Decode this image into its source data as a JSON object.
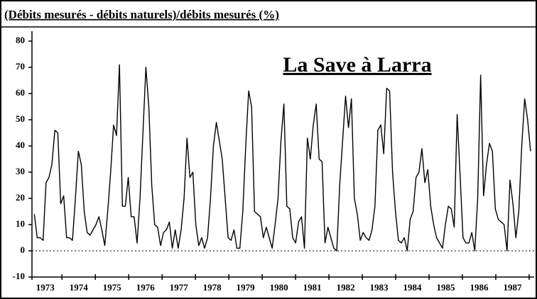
{
  "chart_data": {
    "type": "line",
    "title": "(Débits mesurés - débits naturels)/débits mesurés (%)",
    "annotation": "La Save à Larra",
    "color": "#000000",
    "ylim": [
      -10,
      80
    ],
    "yticks": [
      -10,
      0,
      10,
      20,
      30,
      40,
      50,
      60,
      70,
      80
    ],
    "xlim": [
      1973.1,
      1988.15
    ],
    "xticks": [
      {
        "value": 1973.5,
        "label": "1973"
      },
      {
        "value": 1974.5,
        "label": "1974"
      },
      {
        "value": 1975.5,
        "label": "1975"
      },
      {
        "value": 1976.5,
        "label": "1976"
      },
      {
        "value": 1977.5,
        "label": "1977"
      },
      {
        "value": 1978.5,
        "label": "1978"
      },
      {
        "value": 1979.5,
        "label": "1979"
      },
      {
        "value": 1980.5,
        "label": "1980"
      },
      {
        "value": 1981.5,
        "label": "1981"
      },
      {
        "value": 1982.5,
        "label": "1982"
      },
      {
        "value": 1983.5,
        "label": "1983"
      },
      {
        "value": 1984.5,
        "label": "1984"
      },
      {
        "value": 1985.5,
        "label": "1985"
      },
      {
        "value": 1986.5,
        "label": "1986"
      },
      {
        "value": 1987.5,
        "label": "1987"
      }
    ],
    "xtick_marks": [
      1974,
      1975,
      1976,
      1977,
      1978,
      1979,
      1980,
      1981,
      1982,
      1983,
      1984,
      1985,
      1986,
      1987,
      1988
    ],
    "reference_line": 0,
    "x": [
      1973.17,
      1973.258,
      1973.346,
      1973.434,
      1973.522,
      1973.61,
      1973.698,
      1973.786,
      1973.874,
      1973.962,
      1974.05,
      1974.138,
      1974.226,
      1974.314,
      1974.402,
      1974.49,
      1974.578,
      1974.666,
      1974.754,
      1974.842,
      1974.93,
      1975.018,
      1975.106,
      1975.194,
      1975.282,
      1975.37,
      1975.458,
      1975.546,
      1975.634,
      1975.722,
      1975.81,
      1975.898,
      1975.986,
      1976.074,
      1976.162,
      1976.25,
      1976.338,
      1976.426,
      1976.514,
      1976.602,
      1976.69,
      1976.778,
      1976.866,
      1976.954,
      1977.042,
      1977.13,
      1977.218,
      1977.306,
      1977.394,
      1977.482,
      1977.57,
      1977.658,
      1977.746,
      1977.834,
      1977.922,
      1978.01,
      1978.098,
      1978.186,
      1978.274,
      1978.362,
      1978.45,
      1978.538,
      1978.626,
      1978.714,
      1978.802,
      1978.89,
      1978.978,
      1979.066,
      1979.154,
      1979.242,
      1979.33,
      1979.418,
      1979.506,
      1979.594,
      1979.682,
      1979.77,
      1979.858,
      1979.946,
      1980.034,
      1980.122,
      1980.21,
      1980.298,
      1980.386,
      1980.474,
      1980.562,
      1980.65,
      1980.738,
      1980.826,
      1980.914,
      1981.002,
      1981.09,
      1981.178,
      1981.266,
      1981.354,
      1981.442,
      1981.53,
      1981.618,
      1981.706,
      1981.794,
      1981.882,
      1981.97,
      1982.058,
      1982.146,
      1982.234,
      1982.322,
      1982.41,
      1982.498,
      1982.586,
      1982.674,
      1982.762,
      1982.85,
      1982.938,
      1983.026,
      1983.114,
      1983.202,
      1983.29,
      1983.378,
      1983.466,
      1983.554,
      1983.642,
      1983.73,
      1983.818,
      1983.906,
      1983.994,
      1984.082,
      1984.17,
      1984.258,
      1984.346,
      1984.434,
      1984.522,
      1984.61,
      1984.698,
      1984.786,
      1984.874,
      1984.962,
      1985.05,
      1985.138,
      1985.226,
      1985.314,
      1985.402,
      1985.49,
      1985.578,
      1985.666,
      1985.754,
      1985.842,
      1985.93,
      1986.018,
      1986.106,
      1986.194,
      1986.282,
      1986.37,
      1986.458,
      1986.546,
      1986.634,
      1986.722,
      1986.81,
      1986.898,
      1986.986,
      1987.074,
      1987.162,
      1987.25,
      1987.338,
      1987.426,
      1987.514,
      1987.602,
      1987.69,
      1987.778,
      1987.866,
      1987.954,
      1988.042
    ],
    "values": [
      14,
      5,
      5,
      4,
      26,
      28,
      33,
      46,
      45,
      18,
      21,
      5,
      5,
      4,
      20,
      38,
      33,
      15,
      7,
      6,
      8,
      10,
      13,
      8,
      2,
      15,
      30,
      48,
      44,
      71,
      17,
      17,
      28,
      13,
      13,
      3,
      20,
      45,
      70,
      55,
      25,
      10,
      9,
      2,
      7,
      8,
      11,
      1,
      8,
      1,
      8,
      20,
      43,
      28,
      30,
      10,
      2,
      5,
      1,
      5,
      20,
      40,
      49,
      42,
      35,
      20,
      5,
      4,
      8,
      1,
      1,
      15,
      40,
      61,
      55,
      15,
      14,
      13,
      5,
      9,
      5,
      1,
      10,
      20,
      42,
      56,
      17,
      16,
      5,
      3,
      11,
      13,
      1,
      43,
      35,
      48,
      56,
      35,
      34,
      3,
      9,
      5,
      1,
      0,
      25,
      42,
      59,
      47,
      58,
      20,
      14,
      4,
      7,
      5,
      4,
      8,
      17,
      46,
      48,
      37,
      62,
      61,
      30,
      15,
      4,
      3,
      5,
      0,
      12,
      15,
      28,
      30,
      39,
      26,
      31,
      17,
      10,
      5,
      3,
      1,
      10,
      17,
      16,
      9,
      52,
      29,
      5,
      3,
      3,
      7,
      0,
      20,
      67,
      21,
      33,
      41,
      38,
      16,
      12,
      11,
      10,
      0,
      27,
      18,
      5,
      15,
      40,
      58,
      50,
      38
    ]
  }
}
